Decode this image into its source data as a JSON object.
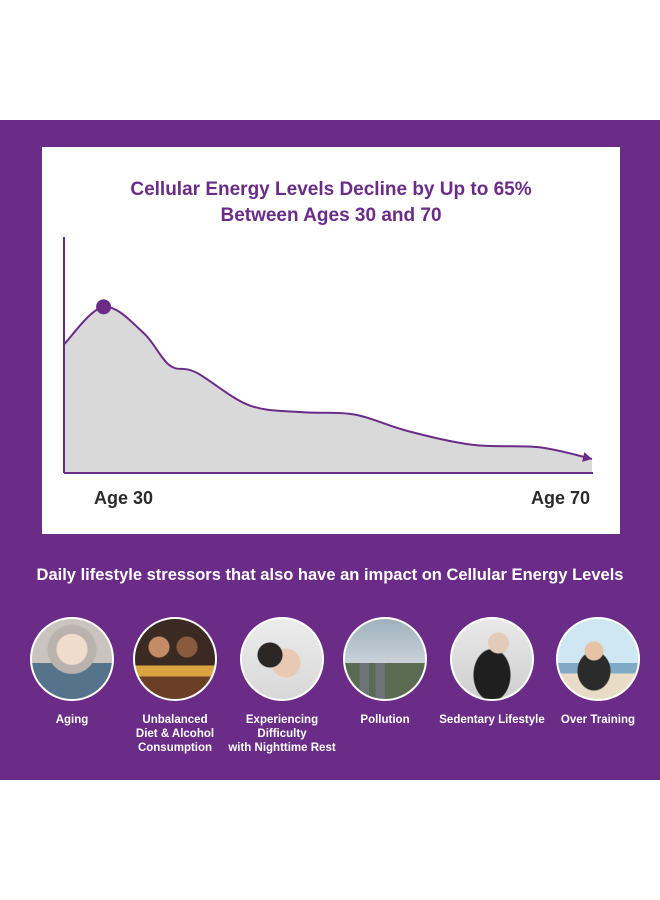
{
  "headline": "Daily lifestyle stressors that also have an impact on Cellular Energy Levels",
  "colors": {
    "brand_purple": "#6a2c87",
    "curve_fill": "#d9d9d9"
  },
  "chart_data": {
    "type": "area",
    "title_lines": [
      "Cellular Energy Levels Decline by Up to 65%",
      "Between Ages 30 and 70"
    ],
    "x_labels": {
      "start": "Age 30",
      "end": "Age 70"
    },
    "x_range": [
      30,
      70
    ],
    "y_range": [
      0,
      100
    ],
    "grid": false,
    "peak_marker": {
      "x": 33,
      "y": 71
    },
    "series": [
      {
        "x": [
          30,
          33,
          36,
          38,
          40,
          44,
          48,
          52,
          56,
          61,
          66,
          70
        ],
        "y": [
          55,
          71,
          60,
          46,
          43,
          29,
          26,
          25,
          18,
          12,
          11,
          6
        ]
      }
    ]
  },
  "stressors": [
    {
      "label_lines": [
        "Aging"
      ],
      "icon": "aging-photo-icon"
    },
    {
      "label_lines": [
        "Unbalanced",
        "Diet & Alcohol",
        "Consumption"
      ],
      "icon": "diet-alcohol-photo-icon"
    },
    {
      "label_lines": [
        "Experiencing Difficulty",
        "with Nighttime Rest"
      ],
      "icon": "sleep-photo-icon"
    },
    {
      "label_lines": [
        "Pollution"
      ],
      "icon": "pollution-photo-icon"
    },
    {
      "label_lines": [
        "Sedentary Lifestyle"
      ],
      "icon": "sedentary-photo-icon"
    },
    {
      "label_lines": [
        "Over Training"
      ],
      "icon": "over-training-photo-icon"
    }
  ]
}
